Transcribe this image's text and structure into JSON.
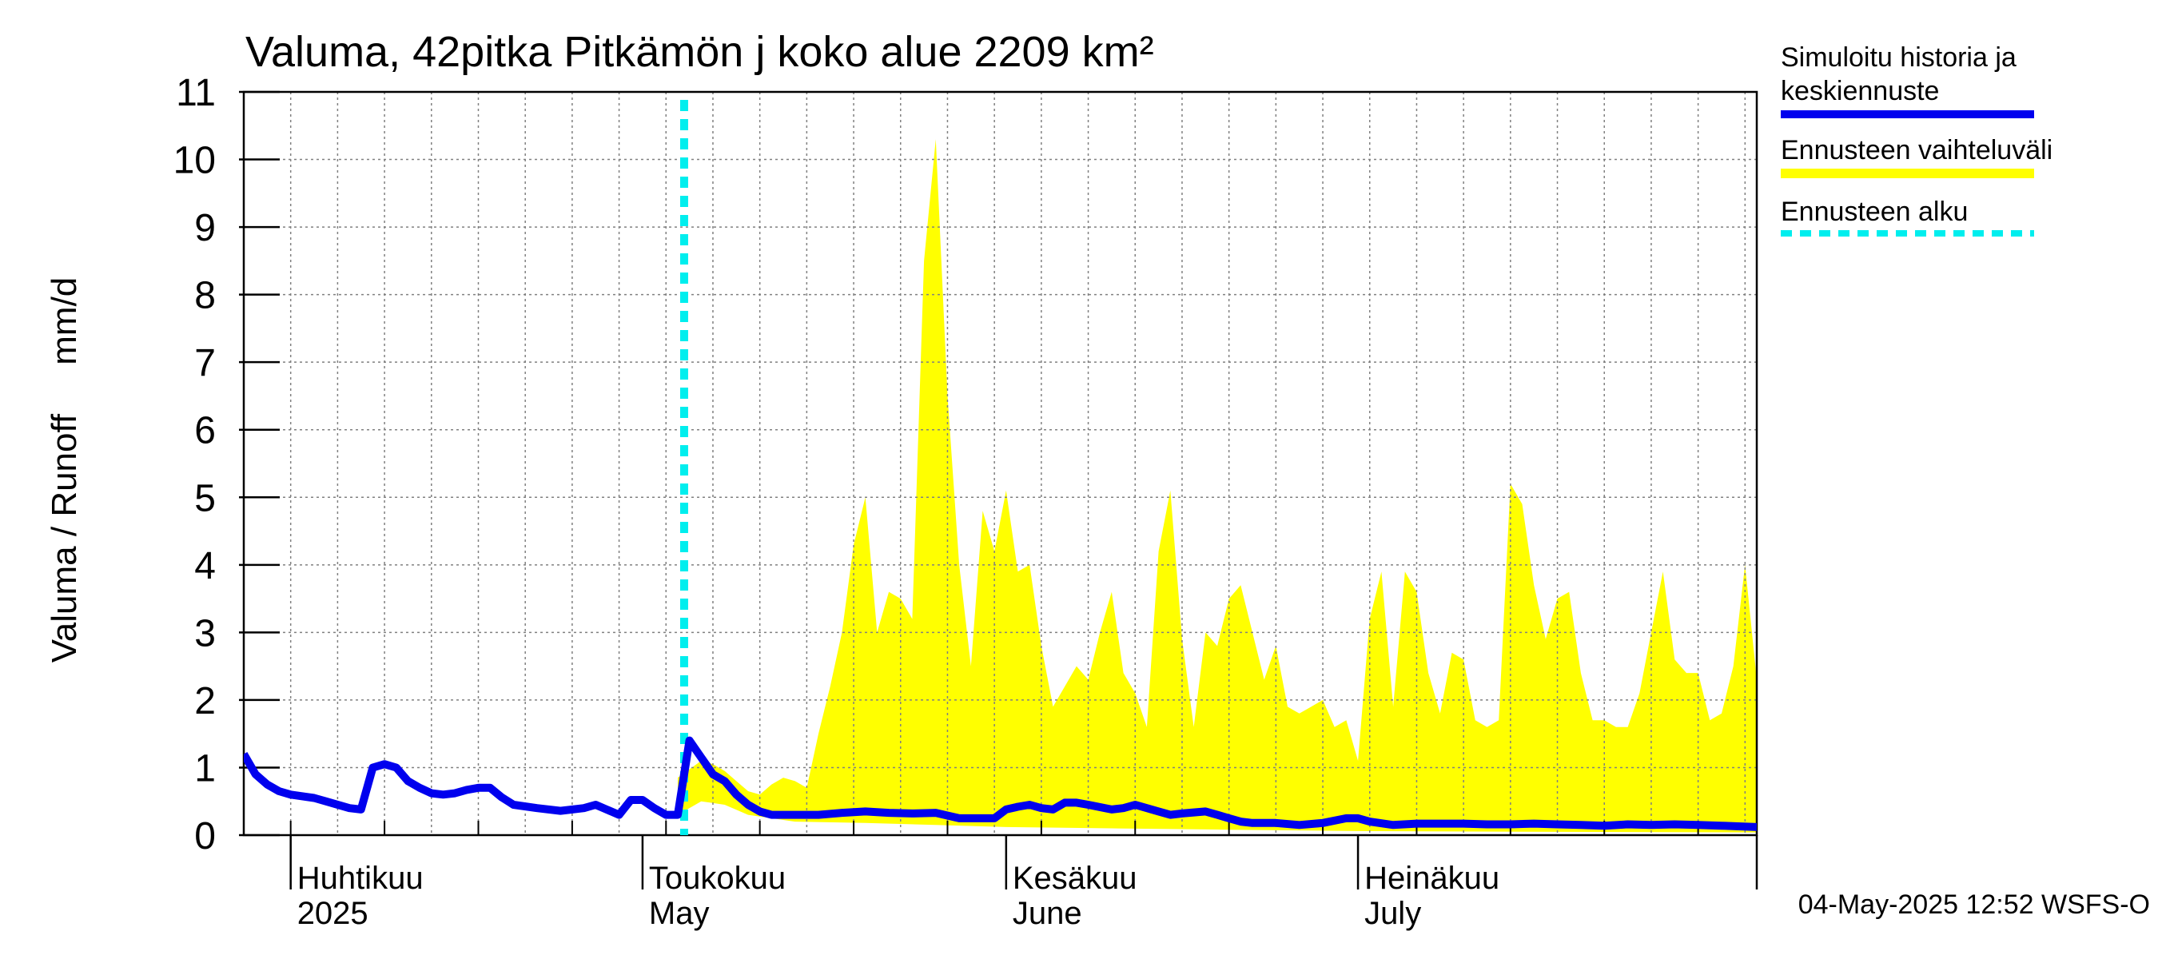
{
  "chart_data": {
    "type": "area",
    "title": "Valuma, 42pitka Pitkämön j koko alue 2209 km²",
    "ylabel": "Valuma / Runoff     mm/d",
    "xlabel": "",
    "ylim": [
      0,
      11
    ],
    "yticks": [
      "0",
      "1",
      "2",
      "3",
      "4",
      "5",
      "6",
      "7",
      "8",
      "9",
      "10",
      "11"
    ],
    "x_start": "2025-03-28",
    "x_end": "2025-08-04",
    "forecast_start": "2025-05-04",
    "grid": true,
    "legend_position": "right",
    "month_labels": [
      {
        "date": "2025-04-01",
        "fi": "Huhtikuu",
        "en": "2025"
      },
      {
        "date": "2025-05-01",
        "fi": "Toukokuu",
        "en": "May"
      },
      {
        "date": "2025-06-01",
        "fi": "Kesäkuu",
        "en": "June"
      },
      {
        "date": "2025-07-01",
        "fi": "Heinäkuu",
        "en": "July"
      }
    ],
    "series": [
      {
        "name": "Simuloitu historia ja keskiennuste",
        "kind": "line",
        "color": "#0000ee",
        "points": [
          [
            "2025-03-28",
            1.2
          ],
          [
            "2025-03-29",
            0.9
          ],
          [
            "2025-03-30",
            0.75
          ],
          [
            "2025-03-31",
            0.65
          ],
          [
            "2025-04-01",
            0.6
          ],
          [
            "2025-04-03",
            0.55
          ],
          [
            "2025-04-04",
            0.5
          ],
          [
            "2025-04-06",
            0.4
          ],
          [
            "2025-04-07",
            0.38
          ],
          [
            "2025-04-08",
            1.0
          ],
          [
            "2025-04-09",
            1.05
          ],
          [
            "2025-04-10",
            1.0
          ],
          [
            "2025-04-11",
            0.8
          ],
          [
            "2025-04-12",
            0.7
          ],
          [
            "2025-04-13",
            0.62
          ],
          [
            "2025-04-14",
            0.6
          ],
          [
            "2025-04-15",
            0.62
          ],
          [
            "2025-04-16",
            0.67
          ],
          [
            "2025-04-17",
            0.7
          ],
          [
            "2025-04-18",
            0.7
          ],
          [
            "2025-04-19",
            0.56
          ],
          [
            "2025-04-20",
            0.45
          ],
          [
            "2025-04-22",
            0.4
          ],
          [
            "2025-04-24",
            0.36
          ],
          [
            "2025-04-26",
            0.4
          ],
          [
            "2025-04-27",
            0.45
          ],
          [
            "2025-04-29",
            0.3
          ],
          [
            "2025-04-30",
            0.52
          ],
          [
            "2025-05-01",
            0.52
          ],
          [
            "2025-05-02",
            0.4
          ],
          [
            "2025-05-03",
            0.3
          ],
          [
            "2025-05-04",
            0.3
          ],
          [
            "2025-05-05",
            1.4
          ],
          [
            "2025-05-06",
            1.15
          ],
          [
            "2025-05-07",
            0.9
          ],
          [
            "2025-05-08",
            0.8
          ],
          [
            "2025-05-09",
            0.6
          ],
          [
            "2025-05-10",
            0.45
          ],
          [
            "2025-05-11",
            0.35
          ],
          [
            "2025-05-12",
            0.3
          ],
          [
            "2025-05-14",
            0.3
          ],
          [
            "2025-05-16",
            0.3
          ],
          [
            "2025-05-18",
            0.33
          ],
          [
            "2025-05-20",
            0.35
          ],
          [
            "2025-05-22",
            0.33
          ],
          [
            "2025-05-24",
            0.32
          ],
          [
            "2025-05-26",
            0.33
          ],
          [
            "2025-05-28",
            0.25
          ],
          [
            "2025-05-30",
            0.25
          ],
          [
            "2025-05-31",
            0.25
          ],
          [
            "2025-06-01",
            0.38
          ],
          [
            "2025-06-02",
            0.42
          ],
          [
            "2025-06-03",
            0.45
          ],
          [
            "2025-06-04",
            0.4
          ],
          [
            "2025-06-05",
            0.38
          ],
          [
            "2025-06-06",
            0.48
          ],
          [
            "2025-06-07",
            0.48
          ],
          [
            "2025-06-08",
            0.45
          ],
          [
            "2025-06-10",
            0.38
          ],
          [
            "2025-06-11",
            0.4
          ],
          [
            "2025-06-12",
            0.45
          ],
          [
            "2025-06-14",
            0.35
          ],
          [
            "2025-06-15",
            0.3
          ],
          [
            "2025-06-16",
            0.32
          ],
          [
            "2025-06-18",
            0.35
          ],
          [
            "2025-06-19",
            0.3
          ],
          [
            "2025-06-20",
            0.25
          ],
          [
            "2025-06-21",
            0.2
          ],
          [
            "2025-06-22",
            0.18
          ],
          [
            "2025-06-24",
            0.18
          ],
          [
            "2025-06-26",
            0.15
          ],
          [
            "2025-06-28",
            0.18
          ],
          [
            "2025-06-30",
            0.25
          ],
          [
            "2025-07-01",
            0.25
          ],
          [
            "2025-07-02",
            0.2
          ],
          [
            "2025-07-04",
            0.15
          ],
          [
            "2025-07-06",
            0.17
          ],
          [
            "2025-07-08",
            0.17
          ],
          [
            "2025-07-10",
            0.17
          ],
          [
            "2025-07-12",
            0.16
          ],
          [
            "2025-07-14",
            0.16
          ],
          [
            "2025-07-16",
            0.17
          ],
          [
            "2025-07-18",
            0.16
          ],
          [
            "2025-07-20",
            0.15
          ],
          [
            "2025-07-22",
            0.14
          ],
          [
            "2025-07-24",
            0.16
          ],
          [
            "2025-07-26",
            0.15
          ],
          [
            "2025-07-28",
            0.16
          ],
          [
            "2025-07-30",
            0.15
          ],
          [
            "2025-08-01",
            0.14
          ],
          [
            "2025-08-04",
            0.12
          ]
        ]
      },
      {
        "name": "Ennusteen vaihteluväli",
        "kind": "band",
        "color": "#ffff00",
        "lower": [
          [
            "2025-05-04",
            0.3
          ],
          [
            "2025-05-06",
            0.5
          ],
          [
            "2025-05-08",
            0.45
          ],
          [
            "2025-05-10",
            0.3
          ],
          [
            "2025-05-14",
            0.2
          ],
          [
            "2025-05-20",
            0.18
          ],
          [
            "2025-05-26",
            0.15
          ],
          [
            "2025-06-01",
            0.12
          ],
          [
            "2025-06-10",
            0.1
          ],
          [
            "2025-06-20",
            0.08
          ],
          [
            "2025-07-01",
            0.06
          ],
          [
            "2025-07-15",
            0.05
          ],
          [
            "2025-08-04",
            0.04
          ]
        ],
        "upper": [
          [
            "2025-05-04",
            0.85
          ],
          [
            "2025-05-06",
            1.1
          ],
          [
            "2025-05-07",
            1.05
          ],
          [
            "2025-05-08",
            0.95
          ],
          [
            "2025-05-09",
            0.8
          ],
          [
            "2025-05-10",
            0.65
          ],
          [
            "2025-05-11",
            0.6
          ],
          [
            "2025-05-12",
            0.75
          ],
          [
            "2025-05-13",
            0.85
          ],
          [
            "2025-05-14",
            0.8
          ],
          [
            "2025-05-15",
            0.7
          ],
          [
            "2025-05-16",
            1.5
          ],
          [
            "2025-05-17",
            2.2
          ],
          [
            "2025-05-18",
            3.0
          ],
          [
            "2025-05-19",
            4.3
          ],
          [
            "2025-05-20",
            5.0
          ],
          [
            "2025-05-21",
            3.0
          ],
          [
            "2025-05-22",
            3.6
          ],
          [
            "2025-05-23",
            3.5
          ],
          [
            "2025-05-24",
            3.2
          ],
          [
            "2025-05-25",
            8.5
          ],
          [
            "2025-05-26",
            10.3
          ],
          [
            "2025-05-27",
            6.5
          ],
          [
            "2025-05-28",
            4.0
          ],
          [
            "2025-05-29",
            2.5
          ],
          [
            "2025-05-30",
            4.8
          ],
          [
            "2025-05-31",
            4.2
          ],
          [
            "2025-06-01",
            5.1
          ],
          [
            "2025-06-02",
            3.9
          ],
          [
            "2025-06-03",
            4.0
          ],
          [
            "2025-06-04",
            2.8
          ],
          [
            "2025-06-05",
            1.9
          ],
          [
            "2025-06-06",
            2.2
          ],
          [
            "2025-06-07",
            2.5
          ],
          [
            "2025-06-08",
            2.3
          ],
          [
            "2025-06-09",
            3.0
          ],
          [
            "2025-06-10",
            3.6
          ],
          [
            "2025-06-11",
            2.4
          ],
          [
            "2025-06-12",
            2.1
          ],
          [
            "2025-06-13",
            1.6
          ],
          [
            "2025-06-14",
            4.2
          ],
          [
            "2025-06-15",
            5.1
          ],
          [
            "2025-06-16",
            2.9
          ],
          [
            "2025-06-17",
            1.6
          ],
          [
            "2025-06-18",
            3.0
          ],
          [
            "2025-06-19",
            2.8
          ],
          [
            "2025-06-20",
            3.5
          ],
          [
            "2025-06-21",
            3.7
          ],
          [
            "2025-06-22",
            3.0
          ],
          [
            "2025-06-23",
            2.3
          ],
          [
            "2025-06-24",
            2.8
          ],
          [
            "2025-06-25",
            1.9
          ],
          [
            "2025-06-26",
            1.8
          ],
          [
            "2025-06-27",
            1.9
          ],
          [
            "2025-06-28",
            2.0
          ],
          [
            "2025-06-29",
            1.6
          ],
          [
            "2025-06-30",
            1.7
          ],
          [
            "2025-07-01",
            1.1
          ],
          [
            "2025-07-02",
            3.2
          ],
          [
            "2025-07-03",
            3.9
          ],
          [
            "2025-07-04",
            1.9
          ],
          [
            "2025-07-05",
            3.9
          ],
          [
            "2025-07-06",
            3.6
          ],
          [
            "2025-07-07",
            2.4
          ],
          [
            "2025-07-08",
            1.8
          ],
          [
            "2025-07-09",
            2.7
          ],
          [
            "2025-07-10",
            2.6
          ],
          [
            "2025-07-11",
            1.7
          ],
          [
            "2025-07-12",
            1.6
          ],
          [
            "2025-07-13",
            1.7
          ],
          [
            "2025-07-14",
            5.2
          ],
          [
            "2025-07-15",
            4.9
          ],
          [
            "2025-07-16",
            3.7
          ],
          [
            "2025-07-17",
            2.9
          ],
          [
            "2025-07-18",
            3.5
          ],
          [
            "2025-07-19",
            3.6
          ],
          [
            "2025-07-20",
            2.4
          ],
          [
            "2025-07-21",
            1.7
          ],
          [
            "2025-07-22",
            1.7
          ],
          [
            "2025-07-23",
            1.6
          ],
          [
            "2025-07-24",
            1.6
          ],
          [
            "2025-07-25",
            2.1
          ],
          [
            "2025-07-26",
            3.0
          ],
          [
            "2025-07-27",
            3.9
          ],
          [
            "2025-07-28",
            2.6
          ],
          [
            "2025-07-29",
            2.4
          ],
          [
            "2025-07-30",
            2.4
          ],
          [
            "2025-07-31",
            1.7
          ],
          [
            "2025-08-01",
            1.8
          ],
          [
            "2025-08-02",
            2.5
          ],
          [
            "2025-08-03",
            4.0
          ],
          [
            "2025-08-04",
            2.3
          ],
          [
            "2025-08-05",
            2.3
          ],
          [
            "2025-08-06",
            2.2
          ],
          [
            "2025-08-07",
            1.6
          ]
        ]
      },
      {
        "name": "Ennusteen alku",
        "kind": "vline",
        "color": "#00eeee"
      }
    ]
  },
  "footer": {
    "timestamp": "04-May-2025 12:52 WSFS-O"
  }
}
